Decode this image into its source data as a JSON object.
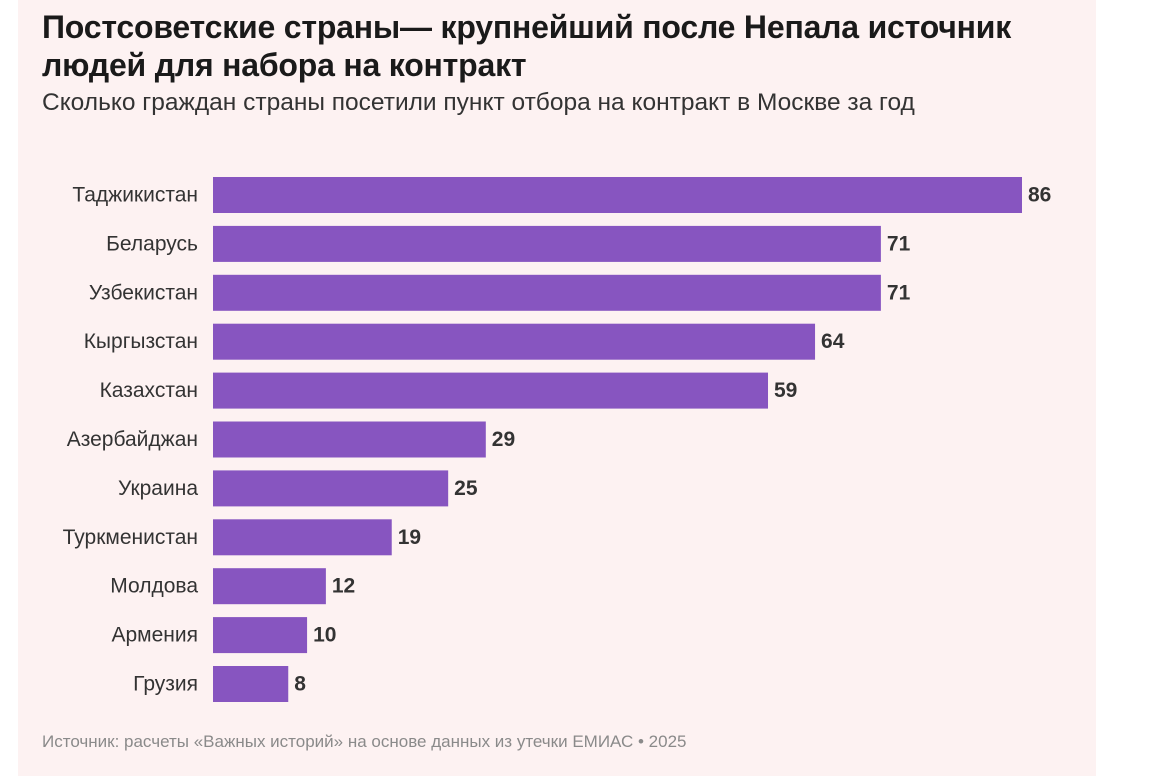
{
  "chart_data": {
    "type": "bar",
    "orientation": "horizontal",
    "title": "Постсоветские страны— крупнейший после Непала источник людей для набора на контракт",
    "subtitle": "Сколько граждан страны посетили пункт отбора на контракт в Москве за год",
    "categories": [
      "Таджикистан",
      "Беларусь",
      "Узбекистан",
      "Кыргызстан",
      "Казахстан",
      "Азербайджан",
      "Украина",
      "Туркменистан",
      "Молдова",
      "Армения",
      "Грузия"
    ],
    "values": [
      86,
      71,
      71,
      64,
      59,
      29,
      25,
      19,
      12,
      10,
      8
    ],
    "value_labels": [
      "86",
      "71",
      "71",
      "64",
      "59",
      "29",
      "25",
      "19",
      "12",
      "10",
      "8"
    ],
    "xlim": [
      0,
      86
    ],
    "grid": false,
    "bar_color": "#8755c0",
    "background_color": "#fdf2f2",
    "source": "Источник: расчеты «Важных историй» на основе данных из утечки ЕМИАС • 2025"
  }
}
